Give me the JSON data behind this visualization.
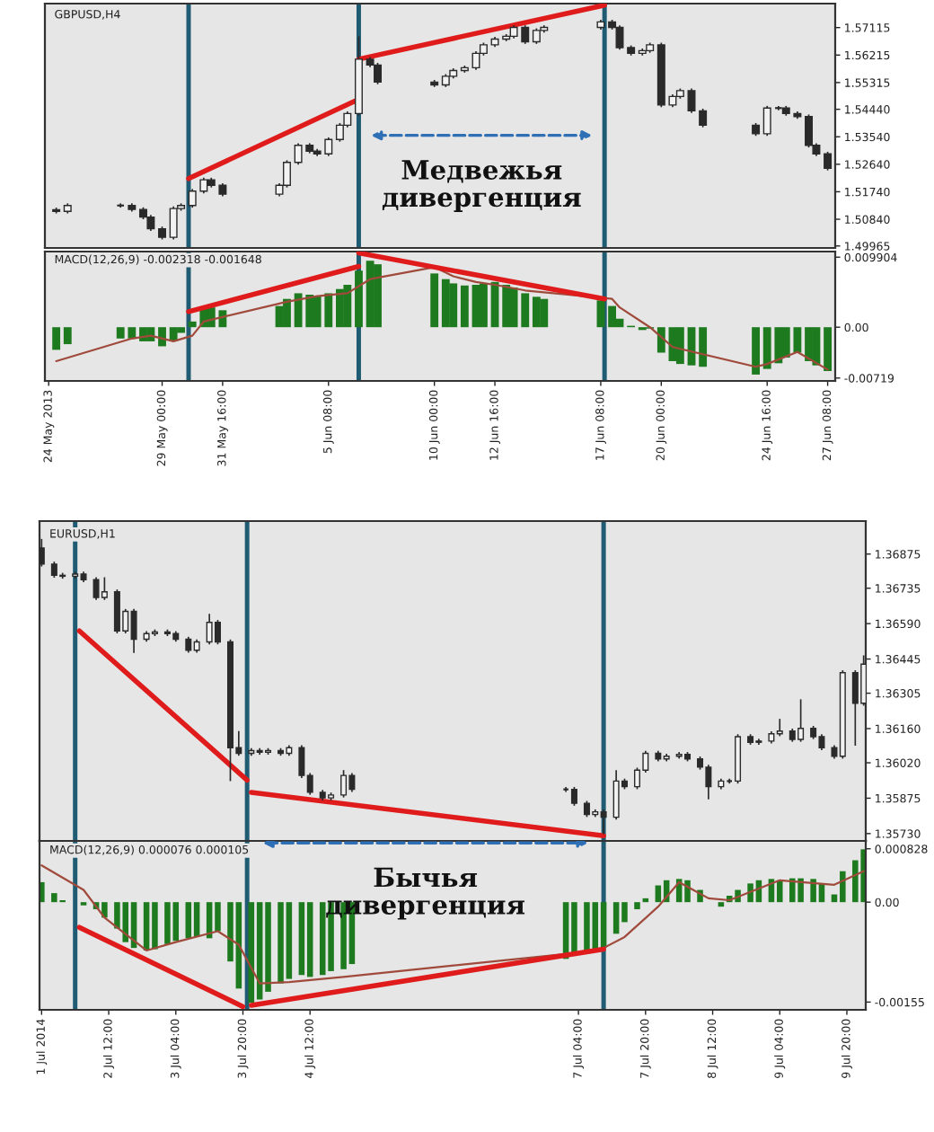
{
  "chart_data": [
    {
      "type": "candlestick",
      "title": "GBPUSD,H4",
      "color": "#2a2a2a",
      "tick_labels": "y",
      "x": [
        "2013-05-24T08:00",
        "2013-05-24T20:00",
        "2013-05-27T04:00",
        "2013-05-27T16:00",
        "2013-05-28T04:00",
        "2013-05-28T12:00",
        "2013-05-29T00:00",
        "2013-05-29T12:00",
        "2013-05-29T20:00",
        "2013-05-30T08:00",
        "2013-05-30T20:00",
        "2013-05-31T04:00",
        "2013-05-31T16:00",
        "2013-06-03T04:00",
        "2013-06-03T12:00",
        "2013-06-04T00:00",
        "2013-06-04T12:00",
        "2013-06-04T20:00",
        "2013-06-05T08:00",
        "2013-06-05T20:00",
        "2013-06-06T04:00",
        "2013-06-06T16:00",
        "2013-06-07T04:00",
        "2013-06-07T12:00",
        "2013-06-10T00:00",
        "2013-06-10T12:00",
        "2013-06-10T20:00",
        "2013-06-11T08:00",
        "2013-06-11T20:00",
        "2013-06-12T04:00",
        "2013-06-12T16:00",
        "2013-06-13T04:00",
        "2013-06-13T12:00",
        "2013-06-14T00:00",
        "2013-06-14T12:00",
        "2013-06-14T20:00",
        "2013-06-17T08:00",
        "2013-06-17T20:00",
        "2013-06-18T04:00",
        "2013-06-18T16:00",
        "2013-06-19T04:00",
        "2013-06-19T12:00",
        "2013-06-20T00:00",
        "2013-06-20T12:00",
        "2013-06-20T20:00",
        "2013-06-21T08:00",
        "2013-06-21T20:00",
        "2013-06-24T04:00",
        "2013-06-24T16:00",
        "2013-06-25T04:00",
        "2013-06-25T12:00",
        "2013-06-26T00:00",
        "2013-06-26T12:00",
        "2013-06-26T20:00",
        "2013-06-27T08:00"
      ],
      "ohlc": [
        [
          1.5115,
          1.5122,
          1.5103,
          1.511
        ],
        [
          1.511,
          1.5136,
          1.5103,
          1.5129
        ],
        [
          1.5129,
          1.5136,
          1.5122,
          1.5129
        ],
        [
          1.5129,
          1.5136,
          1.5109,
          1.5116
        ],
        [
          1.5116,
          1.5123,
          1.5084,
          1.5091
        ],
        [
          1.5091,
          1.5098,
          1.5046,
          1.5053
        ],
        [
          1.5053,
          1.506,
          1.5018,
          1.5025
        ],
        [
          1.5025,
          1.5126,
          1.5018,
          1.5119
        ],
        [
          1.5119,
          1.5136,
          1.5112,
          1.5129
        ],
        [
          1.5129,
          1.5183,
          1.5122,
          1.5176
        ],
        [
          1.5176,
          1.522,
          1.5169,
          1.5213
        ],
        [
          1.5213,
          1.522,
          1.5188,
          1.5195
        ],
        [
          1.5195,
          1.5202,
          1.5159,
          1.5166
        ],
        [
          1.5166,
          1.5202,
          1.5159,
          1.5195
        ],
        [
          1.5195,
          1.5277,
          1.5188,
          1.527
        ],
        [
          1.527,
          1.5333,
          1.5263,
          1.5326
        ],
        [
          1.5326,
          1.5333,
          1.53,
          1.5307
        ],
        [
          1.5307,
          1.5314,
          1.5291,
          1.5298
        ],
        [
          1.5298,
          1.5352,
          1.5291,
          1.5345
        ],
        [
          1.5345,
          1.5399,
          1.5338,
          1.5392
        ],
        [
          1.5392,
          1.5437,
          1.5385,
          1.543
        ],
        [
          1.543,
          1.5683,
          1.5423,
          1.5608
        ],
        [
          1.5608,
          1.5615,
          1.5582,
          1.5589
        ],
        [
          1.5589,
          1.5596,
          1.5526,
          1.5533
        ],
        [
          1.5533,
          1.554,
          1.5517,
          1.5524
        ],
        [
          1.5524,
          1.5559,
          1.5517,
          1.5552
        ],
        [
          1.5552,
          1.5578,
          1.5545,
          1.5571
        ],
        [
          1.5571,
          1.5587,
          1.5564,
          1.558
        ],
        [
          1.558,
          1.5634,
          1.5573,
          1.5627
        ],
        [
          1.5627,
          1.5662,
          1.562,
          1.5655
        ],
        [
          1.5655,
          1.5681,
          1.5648,
          1.5674
        ],
        [
          1.5674,
          1.569,
          1.5667,
          1.5683
        ],
        [
          1.5683,
          1.5719,
          1.5676,
          1.5712
        ],
        [
          1.5712,
          1.5719,
          1.5658,
          1.5665
        ],
        [
          1.5665,
          1.5709,
          1.5658,
          1.5702
        ],
        [
          1.5702,
          1.5719,
          1.5695,
          1.5712
        ],
        [
          1.5712,
          1.5737,
          1.5705,
          1.573
        ],
        [
          1.573,
          1.5737,
          1.5705,
          1.5712
        ],
        [
          1.5712,
          1.5719,
          1.5639,
          1.5646
        ],
        [
          1.5646,
          1.5653,
          1.562,
          1.5627
        ],
        [
          1.5627,
          1.5643,
          1.562,
          1.5636
        ],
        [
          1.5636,
          1.5662,
          1.5629,
          1.5655
        ],
        [
          1.5655,
          1.5662,
          1.5451,
          1.5458
        ],
        [
          1.5458,
          1.5493,
          1.5451,
          1.5486
        ],
        [
          1.5486,
          1.5512,
          1.5479,
          1.5505
        ],
        [
          1.5505,
          1.5512,
          1.5432,
          1.5439
        ],
        [
          1.5439,
          1.5446,
          1.5385,
          1.5392
        ],
        [
          1.5392,
          1.5399,
          1.5357,
          1.5364
        ],
        [
          1.5364,
          1.5455,
          1.5357,
          1.5448
        ],
        [
          1.5448,
          1.5455,
          1.5441,
          1.5448
        ],
        [
          1.5448,
          1.5455,
          1.5423,
          1.543
        ],
        [
          1.543,
          1.5437,
          1.5413,
          1.542
        ],
        [
          1.542,
          1.5427,
          1.5319,
          1.5326
        ],
        [
          1.5326,
          1.5333,
          1.5291,
          1.5298
        ],
        [
          1.5298,
          1.5305,
          1.5244,
          1.5251
        ]
      ],
      "series": [
        {
          "type": "line",
          "x": [
            "2013-05-30T04:00",
            "2013-06-06T16:00"
          ],
          "values": [
            1.5217,
            1.5477
          ],
          "color": "#e01b1b"
        },
        {
          "type": "line",
          "x": [
            "2013-06-06T16:00",
            "2013-06-17T12:00"
          ],
          "values": [
            1.5608,
            1.5785
          ],
          "color": "#e01b1b"
        }
      ],
      "xlim": [
        "2013-05-23T20:00",
        "2013-06-27T16:00"
      ],
      "ylim": [
        1.499,
        1.579
      ],
      "yticks": [
        1.49965,
        {
          "value": 1.5084,
          "label": "1.50840"
        },
        {
          "value": 1.5174,
          "label": "1.51740"
        },
        {
          "value": 1.5264,
          "label": "1.52640"
        },
        {
          "value": 1.5354,
          "label": "1.53540"
        },
        {
          "value": 1.5444,
          "label": "1.54440"
        },
        1.55315,
        1.56215,
        1.57115
      ],
      "ref_lines": [
        {
          "axis": "x",
          "value": "2013-05-30T04:00",
          "color": "#1f5c73"
        },
        {
          "axis": "x",
          "value": "2013-06-06T16:00",
          "color": "#1f5c73"
        },
        {
          "axis": "x",
          "value": "2013-06-17T12:00",
          "color": "#1f5c73"
        }
      ],
      "annotations": [
        "Медвежья\nдивергенция"
      ]
    },
    {
      "type": "bar",
      "title": "MACD(12,26,9) -0.002318 -0.001648",
      "color": "#1e7a1e",
      "x": [
        "2013-05-24T08:00",
        "2013-05-24T20:00",
        "2013-05-27T04:00",
        "2013-05-27T16:00",
        "2013-05-28T04:00",
        "2013-05-28T12:00",
        "2013-05-29T00:00",
        "2013-05-29T12:00",
        "2013-05-29T20:00",
        "2013-05-30T08:00",
        "2013-05-30T20:00",
        "2013-05-31T04:00",
        "2013-05-31T16:00",
        "2013-06-03T04:00",
        "2013-06-03T12:00",
        "2013-06-04T00:00",
        "2013-06-04T12:00",
        "2013-06-04T20:00",
        "2013-06-05T08:00",
        "2013-06-05T20:00",
        "2013-06-06T04:00",
        "2013-06-06T16:00",
        "2013-06-07T04:00",
        "2013-06-07T12:00",
        "2013-06-10T00:00",
        "2013-06-10T12:00",
        "2013-06-10T20:00",
        "2013-06-11T08:00",
        "2013-06-11T20:00",
        "2013-06-12T04:00",
        "2013-06-12T16:00",
        "2013-06-13T04:00",
        "2013-06-13T12:00",
        "2013-06-14T00:00",
        "2013-06-14T12:00",
        "2013-06-14T20:00",
        "2013-06-17T08:00",
        "2013-06-17T20:00",
        "2013-06-18T04:00",
        "2013-06-18T16:00",
        "2013-06-19T04:00",
        "2013-06-19T12:00",
        "2013-06-20T00:00",
        "2013-06-20T12:00",
        "2013-06-20T20:00",
        "2013-06-21T08:00",
        "2013-06-21T20:00",
        "2013-06-24T04:00",
        "2013-06-24T16:00",
        "2013-06-25T04:00",
        "2013-06-25T12:00",
        "2013-06-26T00:00",
        "2013-06-26T12:00",
        "2013-06-26T20:00",
        "2013-06-27T08:00"
      ],
      "values": [
        -0.0032,
        -0.0024,
        -0.0016,
        -0.0016,
        -0.002,
        -0.002,
        -0.0027,
        -0.002,
        -0.0008,
        0.0008,
        0.0028,
        0.0028,
        0.0024,
        0.003,
        0.004,
        0.0048,
        0.0046,
        0.0044,
        0.0048,
        0.0054,
        0.006,
        0.008,
        0.0094,
        0.0089,
        0.0076,
        0.0068,
        0.0062,
        0.0059,
        0.006,
        0.0062,
        0.0064,
        0.006,
        0.0056,
        0.0048,
        0.0043,
        0.004,
        0.0038,
        0.003,
        0.0012,
        0.0002,
        -0.0004,
        -0.0002,
        -0.0036,
        -0.0048,
        -0.0052,
        -0.0054,
        -0.0056,
        -0.0067,
        -0.0059,
        -0.0051,
        -0.0043,
        -0.0036,
        -0.0048,
        -0.0054,
        -0.0062
      ],
      "series": [
        {
          "type": "line",
          "x": [
            "2013-05-24T08:00",
            "2013-05-27T16:00",
            "2013-05-28T12:00",
            "2013-05-29T12:00",
            "2013-05-30T08:00",
            "2013-05-30T20:00",
            "2013-06-03T12:00",
            "2013-06-04T20:00",
            "2013-06-06T04:00",
            "2013-06-07T04:00",
            "2013-06-10T00:00",
            "2013-06-10T20:00",
            "2013-06-11T20:00",
            "2013-06-12T16:00",
            "2013-06-14T00:00",
            "2013-06-17T20:00",
            "2013-06-18T04:00",
            "2013-06-19T12:00",
            "2013-06-20T12:00",
            "2013-06-24T04:00",
            "2013-06-24T16:00",
            "2013-06-26T00:00",
            "2013-06-27T08:00"
          ],
          "values": [
            -0.0048,
            -0.0016,
            -0.0012,
            -0.002,
            -0.0012,
            0.0008,
            0.0036,
            0.0044,
            0.0048,
            0.0068,
            0.0085,
            0.0072,
            0.0064,
            0.006,
            0.0052,
            0.004,
            0.0028,
            0,
            -0.0028,
            -0.0056,
            -0.0052,
            -0.0035,
            -0.006
          ],
          "color": "#a04a3c"
        },
        {
          "type": "line",
          "x": [
            "2013-05-30T04:00",
            "2013-06-06T16:00"
          ],
          "values": [
            0.0022,
            0.0086
          ],
          "color": "#e01b1b"
        },
        {
          "type": "line",
          "x": [
            "2013-06-06T16:00",
            "2013-06-17T12:00"
          ],
          "values": [
            0.0105,
            0.004
          ],
          "color": "#e01b1b"
        }
      ],
      "xlim": [
        "2013-05-23T20:00",
        "2013-06-27T16:00"
      ],
      "ylim": [
        -0.0076,
        0.0107
      ],
      "xticks": [
        {
          "value": "2013-05-24T00:00",
          "label": "24 May 2013"
        },
        {
          "value": "2013-05-29T00:00",
          "label": "29 May 00:00"
        },
        {
          "value": "2013-05-31T16:00",
          "label": "31 May 16:00"
        },
        {
          "value": "2013-06-05T08:00",
          "label": "5 Jun 08:00"
        },
        {
          "value": "2013-06-10T00:00",
          "label": "10 Jun 00:00"
        },
        {
          "value": "2013-06-12T16:00",
          "label": "12 Jun 16:00"
        },
        {
          "value": "2013-06-17T08:00",
          "label": "17 Jun 08:00"
        },
        {
          "value": "2013-06-20T00:00",
          "label": "20 Jun 00:00"
        },
        {
          "value": "2013-06-24T16:00",
          "label": "24 Jun 16:00"
        },
        {
          "value": "2013-06-27T08:00",
          "label": "27 Jun 08:00"
        }
      ],
      "yticks": [
        0.009904,
        {
          "value": 0,
          "label": "0.00"
        },
        -0.00719
      ],
      "ref_lines": [
        {
          "axis": "x",
          "value": "2013-05-30T04:00",
          "color": "#1f5c73"
        },
        {
          "axis": "x",
          "value": "2013-06-06T16:00",
          "color": "#1f5c73"
        },
        {
          "axis": "x",
          "value": "2013-06-17T12:00",
          "color": "#1f5c73"
        }
      ]
    },
    {
      "type": "candlestick",
      "title": "EURUSD,H1",
      "color": "#2a2a2a",
      "tick_labels": "y",
      "x": [
        "2014-07-01T20:00",
        "2014-07-01T23:00",
        "2014-07-02T01:00",
        "2014-07-02T04:00",
        "2014-07-02T06:00",
        "2014-07-02T09:00",
        "2014-07-02T11:00",
        "2014-07-02T14:00",
        "2014-07-02T16:00",
        "2014-07-02T18:00",
        "2014-07-02T21:00",
        "2014-07-02T23:00",
        "2014-07-03T02:00",
        "2014-07-03T04:00",
        "2014-07-03T07:00",
        "2014-07-03T09:00",
        "2014-07-03T12:00",
        "2014-07-03T14:00",
        "2014-07-03T17:00",
        "2014-07-03T19:00",
        "2014-07-03T22:00",
        "2014-07-04T00:00",
        "2014-07-04T02:00",
        "2014-07-04T05:00",
        "2014-07-04T07:00",
        "2014-07-04T10:00",
        "2014-07-04T12:00",
        "2014-07-04T15:00",
        "2014-07-04T17:00",
        "2014-07-04T20:00",
        "2014-07-04T22:00",
        "2014-07-07T01:00",
        "2014-07-07T03:00",
        "2014-07-07T06:00",
        "2014-07-07T08:00",
        "2014-07-07T10:00",
        "2014-07-07T13:00",
        "2014-07-07T15:00",
        "2014-07-07T18:00",
        "2014-07-07T20:00",
        "2014-07-07T23:00",
        "2014-07-08T01:00",
        "2014-07-08T04:00",
        "2014-07-08T06:00",
        "2014-07-08T09:00",
        "2014-07-08T11:00",
        "2014-07-08T14:00",
        "2014-07-08T16:00",
        "2014-07-08T18:00",
        "2014-07-08T21:00",
        "2014-07-08T23:00",
        "2014-07-09T02:00",
        "2014-07-09T04:00",
        "2014-07-09T07:00",
        "2014-07-09T09:00",
        "2014-07-09T12:00",
        "2014-07-09T14:00",
        "2014-07-09T17:00",
        "2014-07-09T19:00",
        "2014-07-09T22:00",
        "2014-07-10T00:00"
      ],
      "ohlc": [
        [
          1.369,
          1.36937,
          1.36824,
          1.36834
        ],
        [
          1.36834,
          1.36844,
          1.36778,
          1.36788
        ],
        [
          1.36788,
          1.36798,
          1.36774,
          1.36784
        ],
        [
          1.36784,
          1.36803,
          1.36774,
          1.36793
        ],
        [
          1.36793,
          1.36803,
          1.3676,
          1.3677
        ],
        [
          1.3677,
          1.3678,
          1.36687,
          1.36697
        ],
        [
          1.36697,
          1.3678,
          1.36687,
          1.3672
        ],
        [
          1.3672,
          1.3673,
          1.3655,
          1.3656
        ],
        [
          1.3656,
          1.3665,
          1.3655,
          1.3664
        ],
        [
          1.3664,
          1.3665,
          1.3647,
          1.36526
        ],
        [
          1.36526,
          1.36559,
          1.36516,
          1.36549
        ],
        [
          1.36549,
          1.36566,
          1.36539,
          1.36556
        ],
        [
          1.36556,
          1.36566,
          1.36539,
          1.36549
        ],
        [
          1.36549,
          1.36559,
          1.36516,
          1.36526
        ],
        [
          1.36526,
          1.36536,
          1.36471,
          1.36481
        ],
        [
          1.36481,
          1.36525,
          1.36471,
          1.36515
        ],
        [
          1.36515,
          1.3663,
          1.36505,
          1.36595
        ],
        [
          1.36595,
          1.36605,
          1.36505,
          1.36515
        ],
        [
          1.36515,
          1.36525,
          1.35945,
          1.36082
        ],
        [
          1.36082,
          1.3615,
          1.36049,
          1.36059
        ],
        [
          1.36059,
          1.3608,
          1.36049,
          1.3607
        ],
        [
          1.3607,
          1.3608,
          1.36053,
          1.36063
        ],
        [
          1.36063,
          1.3608,
          1.36053,
          1.3607
        ],
        [
          1.3607,
          1.3608,
          1.36049,
          1.36059
        ],
        [
          1.36059,
          1.36092,
          1.36049,
          1.36082
        ],
        [
          1.36082,
          1.36092,
          1.35958,
          1.35968
        ],
        [
          1.35968,
          1.35978,
          1.35889,
          1.35899
        ],
        [
          1.35899,
          1.35909,
          1.35866,
          1.35876
        ],
        [
          1.35876,
          1.35898,
          1.35866,
          1.35888
        ],
        [
          1.35888,
          1.3599,
          1.35878,
          1.35968
        ],
        [
          1.35968,
          1.35978,
          1.35901,
          1.35911
        ],
        [
          1.35911,
          1.35921,
          1.35901,
          1.35911
        ],
        [
          1.35911,
          1.35921,
          1.35844,
          1.35854
        ],
        [
          1.35854,
          1.35864,
          1.35798,
          1.35808
        ],
        [
          1.35808,
          1.35829,
          1.35798,
          1.35819
        ],
        [
          1.35819,
          1.35829,
          1.35728,
          1.35797
        ],
        [
          1.35797,
          1.3599,
          1.35787,
          1.35945
        ],
        [
          1.35945,
          1.35955,
          1.35912,
          1.35922
        ],
        [
          1.35922,
          1.36,
          1.35912,
          1.3599
        ],
        [
          1.3599,
          1.36069,
          1.3598,
          1.36059
        ],
        [
          1.36059,
          1.36069,
          1.36026,
          1.36036
        ],
        [
          1.36036,
          1.36057,
          1.36026,
          1.36047
        ],
        [
          1.36047,
          1.36064,
          1.36037,
          1.36054
        ],
        [
          1.36054,
          1.36064,
          1.36026,
          1.36036
        ],
        [
          1.36036,
          1.36046,
          1.35992,
          1.36002
        ],
        [
          1.36002,
          1.36012,
          1.3587,
          1.35922
        ],
        [
          1.35922,
          1.35955,
          1.35912,
          1.35945
        ],
        [
          1.35945,
          1.35955,
          1.35935,
          1.35945
        ],
        [
          1.35945,
          1.36137,
          1.35935,
          1.36127
        ],
        [
          1.36127,
          1.36137,
          1.36094,
          1.36104
        ],
        [
          1.36104,
          1.36119,
          1.36094,
          1.36109
        ],
        [
          1.36109,
          1.36149,
          1.36099,
          1.36139
        ],
        [
          1.36139,
          1.362,
          1.36129,
          1.3615
        ],
        [
          1.3615,
          1.3616,
          1.36106,
          1.36116
        ],
        [
          1.36116,
          1.3628,
          1.36106,
          1.36161
        ],
        [
          1.36161,
          1.36171,
          1.36117,
          1.36127
        ],
        [
          1.36127,
          1.36137,
          1.36072,
          1.36082
        ],
        [
          1.36082,
          1.36092,
          1.36037,
          1.36047
        ],
        [
          1.36047,
          1.36399,
          1.36037,
          1.36389
        ],
        [
          1.36389,
          1.36399,
          1.3609,
          1.36264
        ],
        [
          1.36264,
          1.3646,
          1.36254,
          1.36424
        ]
      ],
      "series": [
        {
          "type": "line",
          "x": [
            "2014-07-02T05:00",
            "2014-07-03T21:00"
          ],
          "values": [
            1.3656,
            1.35949
          ],
          "color": "#e01b1b"
        },
        {
          "type": "line",
          "x": [
            "2014-07-03T22:00",
            "2014-07-07T10:00"
          ],
          "values": [
            1.35899,
            1.35721
          ],
          "color": "#e01b1b"
        }
      ],
      "xlim": [
        "2014-07-01T19:30",
        "2014-07-10T00:30"
      ],
      "ylim": [
        1.357,
        1.3701
      ],
      "yticks": [
        {
          "value": 1.3573,
          "label": "1.35730"
        },
        1.35875,
        {
          "value": 1.3602,
          "label": "1.36020"
        },
        {
          "value": 1.3616,
          "label": "1.36160"
        },
        1.36305,
        1.36445,
        {
          "value": 1.3659,
          "label": "1.36590"
        },
        1.36735,
        1.36875
      ],
      "ref_lines": [
        {
          "axis": "x",
          "value": "2014-07-02T04:00",
          "color": "#1f5c73"
        },
        {
          "axis": "x",
          "value": "2014-07-03T21:00",
          "color": "#1f5c73"
        },
        {
          "axis": "x",
          "value": "2014-07-07T10:00",
          "color": "#1f5c73"
        }
      ]
    },
    {
      "type": "bar",
      "title": "MACD(12,26,9) 0.000076 0.000105",
      "color": "#1e7a1e",
      "x": [
        "2014-07-01T20:00",
        "2014-07-01T23:00",
        "2014-07-02T01:00",
        "2014-07-02T04:00",
        "2014-07-02T06:00",
        "2014-07-02T09:00",
        "2014-07-02T11:00",
        "2014-07-02T14:00",
        "2014-07-02T16:00",
        "2014-07-02T18:00",
        "2014-07-02T21:00",
        "2014-07-02T23:00",
        "2014-07-03T02:00",
        "2014-07-03T04:00",
        "2014-07-03T07:00",
        "2014-07-03T09:00",
        "2014-07-03T12:00",
        "2014-07-03T14:00",
        "2014-07-03T17:00",
        "2014-07-03T19:00",
        "2014-07-03T22:00",
        "2014-07-04T00:00",
        "2014-07-04T02:00",
        "2014-07-04T05:00",
        "2014-07-04T07:00",
        "2014-07-04T10:00",
        "2014-07-04T12:00",
        "2014-07-04T15:00",
        "2014-07-04T17:00",
        "2014-07-04T20:00",
        "2014-07-04T22:00",
        "2014-07-07T01:00",
        "2014-07-07T03:00",
        "2014-07-07T06:00",
        "2014-07-07T08:00",
        "2014-07-07T10:00",
        "2014-07-07T13:00",
        "2014-07-07T15:00",
        "2014-07-07T18:00",
        "2014-07-07T20:00",
        "2014-07-07T23:00",
        "2014-07-08T01:00",
        "2014-07-08T04:00",
        "2014-07-08T06:00",
        "2014-07-08T09:00",
        "2014-07-08T11:00",
        "2014-07-08T14:00",
        "2014-07-08T16:00",
        "2014-07-08T18:00",
        "2014-07-08T21:00",
        "2014-07-08T23:00",
        "2014-07-09T02:00",
        "2014-07-09T04:00",
        "2014-07-09T07:00",
        "2014-07-09T09:00",
        "2014-07-09T12:00",
        "2014-07-09T14:00",
        "2014-07-09T17:00",
        "2014-07-09T19:00",
        "2014-07-09T22:00",
        "2014-07-10T00:00"
      ],
      "values": [
        0.00031,
        0.00014,
        3e-05,
        0,
        -5e-05,
        -0.00011,
        -0.00024,
        -0.00041,
        -0.00062,
        -0.00071,
        -0.00075,
        -0.00073,
        -0.00065,
        -0.0006,
        -0.00056,
        -0.00054,
        -0.00056,
        -0.00045,
        -0.00092,
        -0.00134,
        -0.00156,
        -0.00151,
        -0.00139,
        -0.00126,
        -0.00119,
        -0.00113,
        -0.00116,
        -0.00113,
        -0.00107,
        -0.00104,
        -0.00096,
        -0.00088,
        -0.00082,
        -0.0008,
        -0.00077,
        -0.00071,
        -0.00049,
        -0.00031,
        -0.00011,
        6e-05,
        0.00026,
        0.00034,
        0.00036,
        0.00034,
        0.00019,
        0,
        -7e-05,
        0.0001,
        0.00019,
        0.00029,
        0.00034,
        0.00036,
        0.00034,
        0.00037,
        0.00037,
        0.00036,
        0.00029,
        0.00012,
        0.00048,
        0.00065,
        0.00082
      ],
      "series": [
        {
          "type": "line",
          "x": [
            "2014-07-01T20:00",
            "2014-07-02T06:00",
            "2014-07-02T11:00",
            "2014-07-02T21:00",
            "2014-07-03T04:00",
            "2014-07-03T14:00",
            "2014-07-03T19:00",
            "2014-07-04T00:00",
            "2014-07-04T07:00",
            "2014-07-04T20:00",
            "2014-07-07T03:00",
            "2014-07-07T10:00",
            "2014-07-07T15:00",
            "2014-07-07T23:00",
            "2014-07-08T04:00",
            "2014-07-08T11:00",
            "2014-07-08T16:00",
            "2014-07-09T04:00",
            "2014-07-09T17:00",
            "2014-07-10T00:00"
          ],
          "values": [
            0.00057,
            0.00019,
            -0.00024,
            -0.00075,
            -0.00062,
            -0.00045,
            -0.00066,
            -0.00126,
            -0.00124,
            -0.00116,
            -0.00079,
            -0.00071,
            -0.00054,
            -7e-05,
            0.00031,
            6e-05,
            3e-05,
            0.00034,
            0.00027,
            0.00048
          ],
          "color": "#a04a3c"
        },
        {
          "type": "line",
          "x": [
            "2014-07-02T05:00",
            "2014-07-03T20:00"
          ],
          "values": [
            -0.00039,
            -0.00162
          ],
          "color": "#e01b1b"
        },
        {
          "type": "line",
          "x": [
            "2014-07-03T22:00",
            "2014-07-07T10:00"
          ],
          "values": [
            -0.0016,
            -0.00073
          ],
          "color": "#e01b1b"
        }
      ],
      "xlim": [
        "2014-07-01T19:30",
        "2014-07-10T00:30"
      ],
      "ylim": [
        -0.00167,
        0.00095
      ],
      "xticks": [
        {
          "value": "2014-07-01T20:00",
          "label": "1 Jul 2014"
        },
        {
          "value": "2014-07-02T12:00",
          "label": "2 Jul 12:00"
        },
        {
          "value": "2014-07-03T04:00",
          "label": "3 Jul 04:00"
        },
        {
          "value": "2014-07-03T20:00",
          "label": "3 Jul 20:00"
        },
        {
          "value": "2014-07-04T12:00",
          "label": "4 Jul 12:00"
        },
        {
          "value": "2014-07-07T04:00",
          "label": "7 Jul 04:00"
        },
        {
          "value": "2014-07-07T20:00",
          "label": "7 Jul 20:00"
        },
        {
          "value": "2014-07-08T12:00",
          "label": "8 Jul 12:00"
        },
        {
          "value": "2014-07-09T04:00",
          "label": "9 Jul 04:00"
        },
        {
          "value": "2014-07-09T20:00",
          "label": "9 Jul 20:00"
        }
      ],
      "yticks": [
        0.000828,
        {
          "value": 0,
          "label": "0.00"
        },
        -0.00155
      ],
      "ref_lines": [
        {
          "axis": "x",
          "value": "2014-07-02T04:00",
          "color": "#1f5c73"
        },
        {
          "axis": "x",
          "value": "2014-07-03T21:00",
          "color": "#1f5c73"
        },
        {
          "axis": "x",
          "value": "2014-07-07T10:00",
          "color": "#1f5c73"
        }
      ],
      "annotations": [
        "Бычья\nдивергенция"
      ]
    }
  ]
}
